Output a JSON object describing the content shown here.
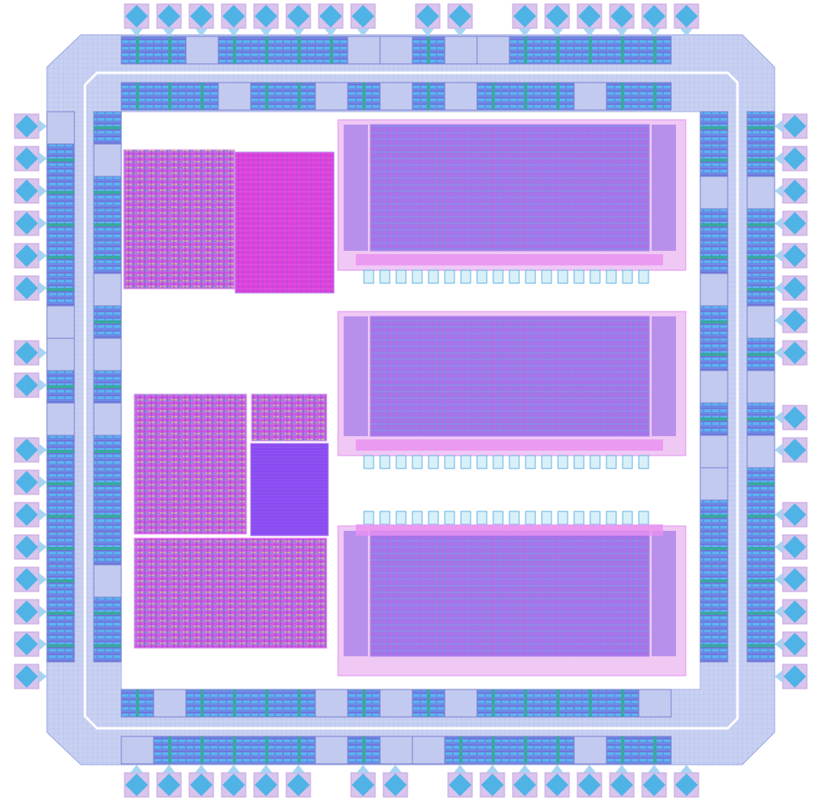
{
  "colors": {
    "background": "#ffffff",
    "pad_fill": "#4fb3e6",
    "pad_frame": "#c8a4e0",
    "ring_fill": "#c5cdf0",
    "ring_line": "#8f9de0",
    "io_cell": "#5b7fe0",
    "io_cell_dark": "#7a55c8",
    "via_green": "#3aa8a0",
    "array_fill": "#9a6ee6",
    "array_line_magenta": "#e040e0",
    "array_line_cyan": "#40c0e0",
    "logic_magenta": "#d030e0",
    "logic_yellow": "#e0e060",
    "sram_magenta": "#e830d0",
    "purple_block": "#8040f0"
  },
  "pads": {
    "top": 16,
    "bottom": 16,
    "left": 16,
    "right": 16
  },
  "core_blocks": [
    "logic-block-1",
    "sram-block",
    "memory-array-1",
    "memory-array-2",
    "memory-array-3",
    "logic-block-2",
    "logic-block-small",
    "purple-macro",
    "logic-block-3"
  ]
}
